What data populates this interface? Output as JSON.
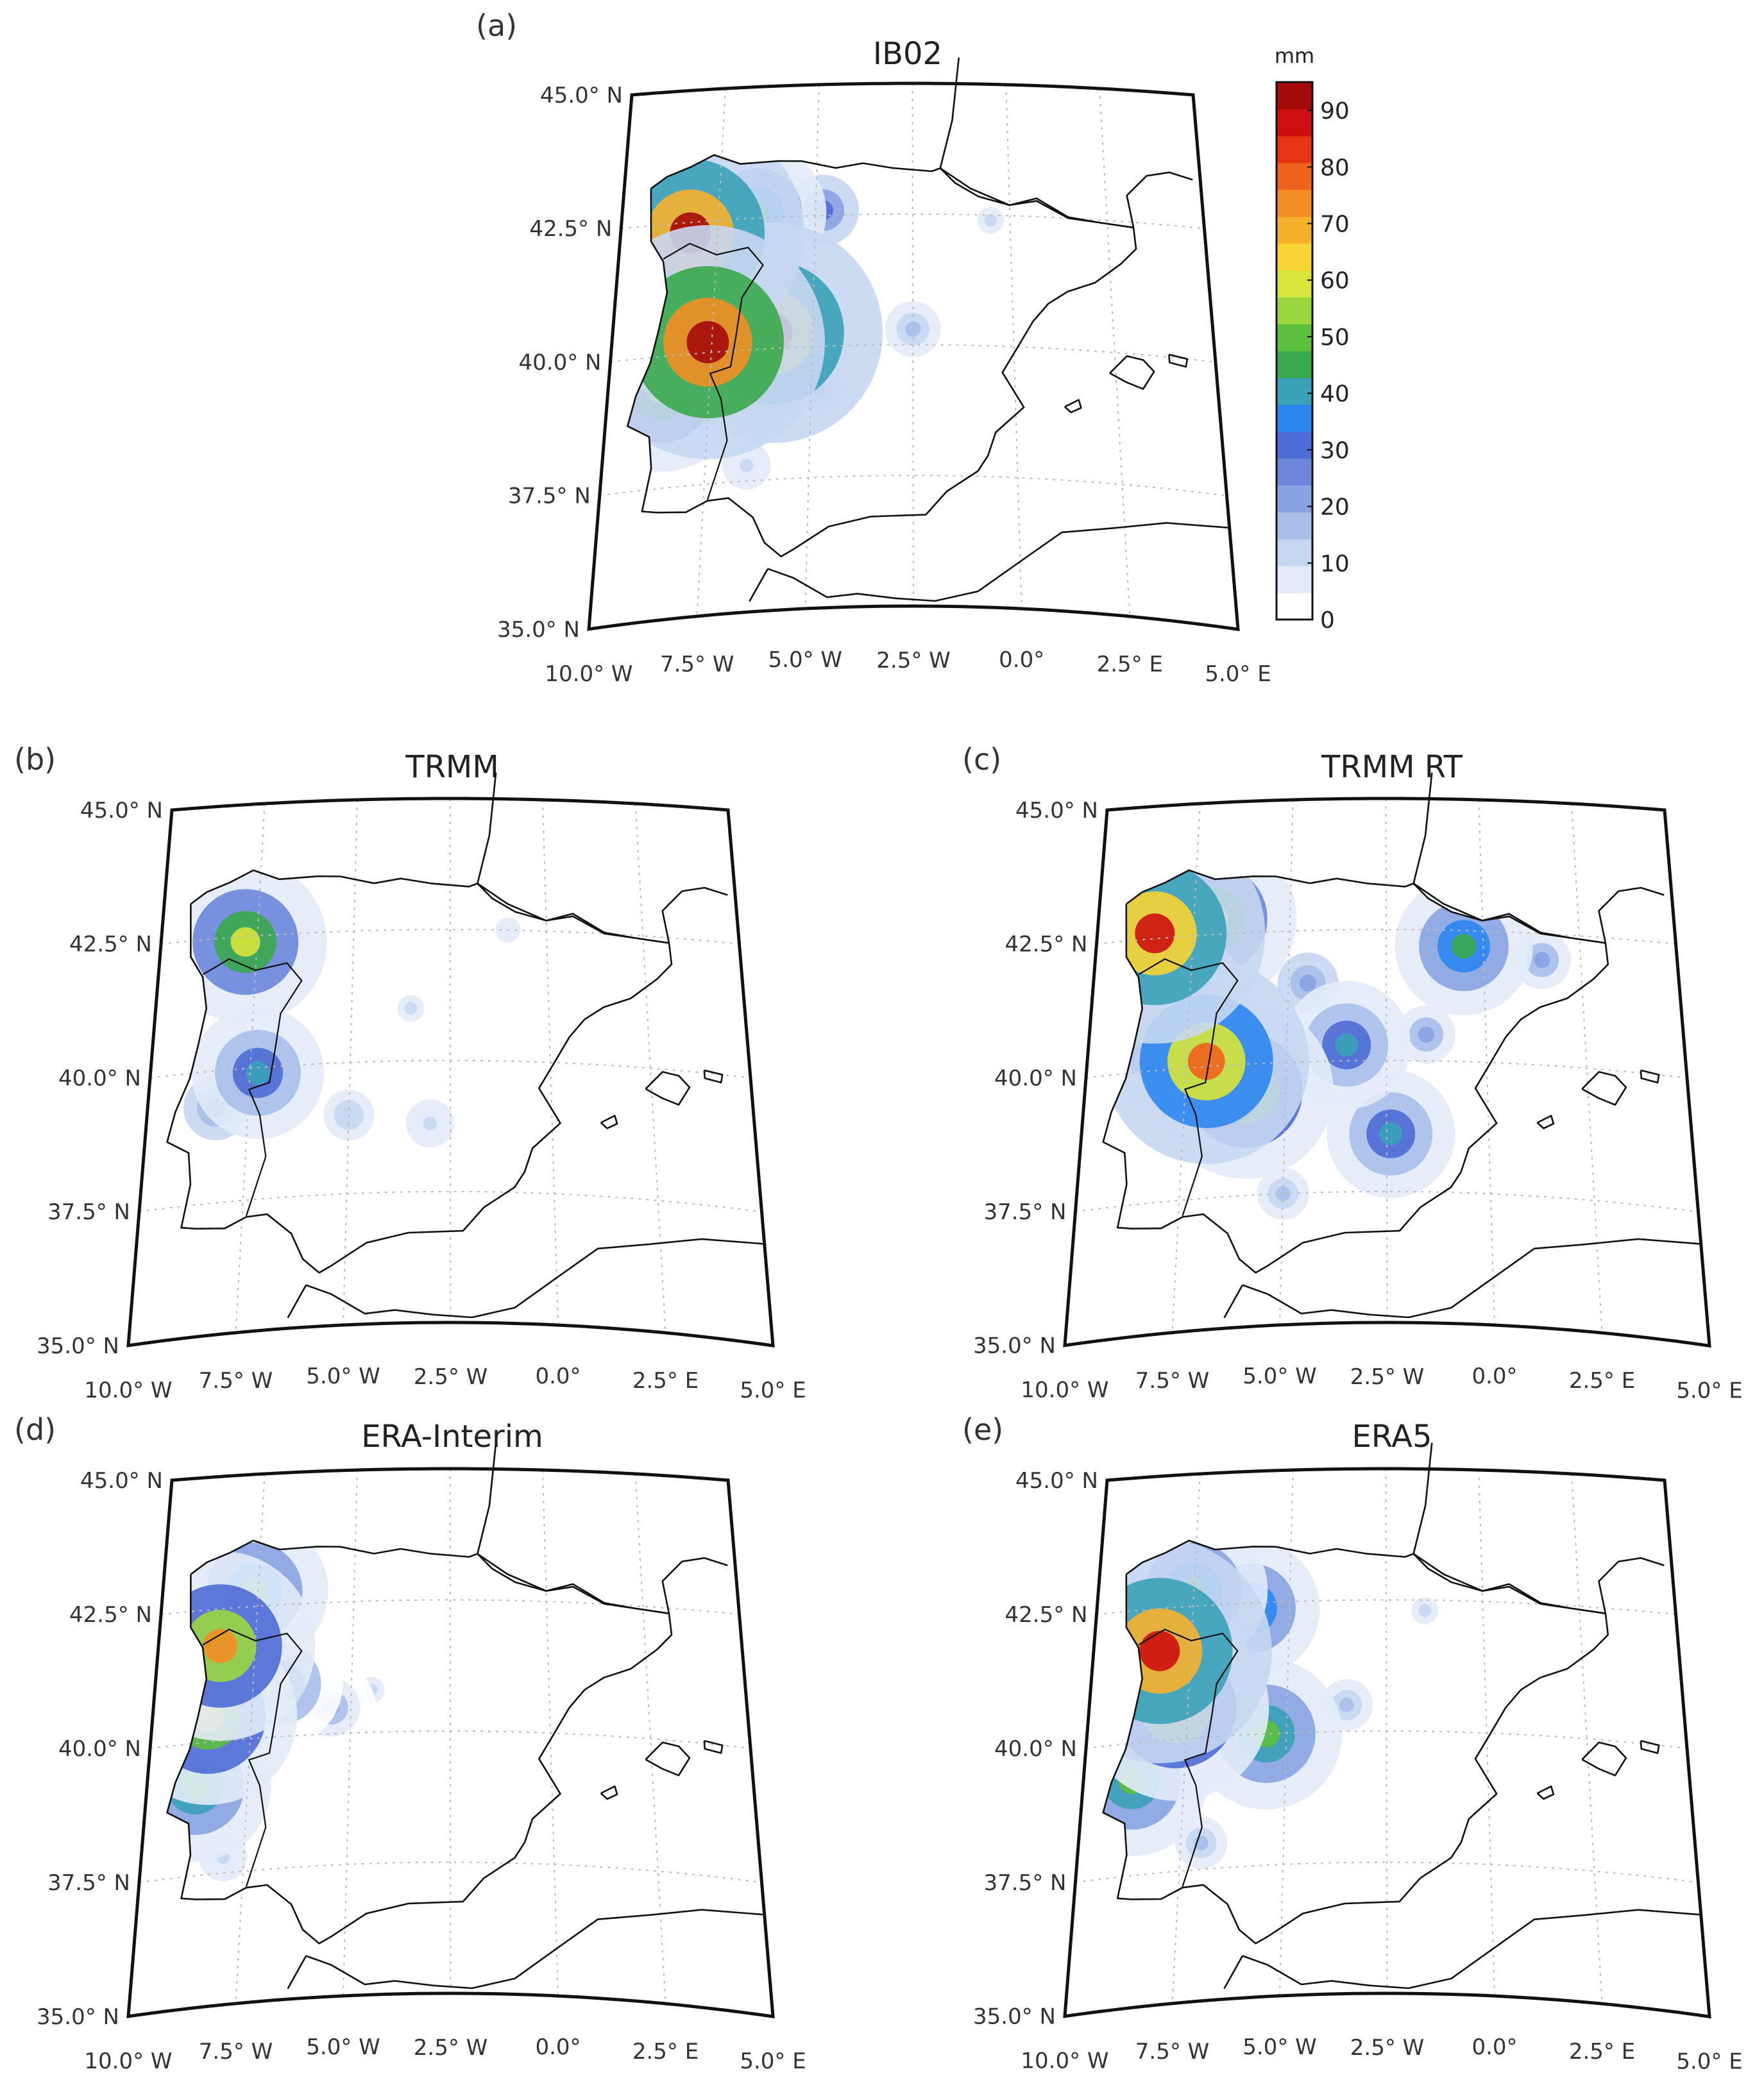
{
  "colorbar": {
    "unit": "mm",
    "min": 0,
    "max": 95,
    "ticks": [
      "0",
      "10",
      "20",
      "30",
      "40",
      "50",
      "60",
      "70",
      "80",
      "90"
    ],
    "colors": [
      "#ffffff",
      "#e3ebf8",
      "#c7d7f1",
      "#a9bfea",
      "#8aa3e2",
      "#6c86da",
      "#4e6cd5",
      "#2c86f0",
      "#3aa1b8",
      "#3aa84c",
      "#5cbf3e",
      "#9ad640",
      "#d7e63a",
      "#f7d433",
      "#f6b12c",
      "#f28e24",
      "#ef621c",
      "#e83316",
      "#cc1010",
      "#a50a0a"
    ]
  },
  "panels": [
    {
      "id": "a",
      "label": "(a)",
      "title": "IB02",
      "lat_labels": [
        "45.0° N",
        "42.5° N",
        "40.0° N",
        "37.5° N",
        "35.0° N"
      ],
      "lon_labels": [
        "10.0° W",
        "7.5° W",
        "5.0° W",
        "2.5° W",
        "0.0°",
        "2.5° E",
        "5.0° E"
      ],
      "field": [
        {
          "lon": -8.2,
          "lat": 42.3,
          "value": 92
        },
        {
          "lon": -7.6,
          "lat": 40.2,
          "value": 95
        },
        {
          "lon": -8.5,
          "lat": 41.0,
          "value": 70
        },
        {
          "lon": -8.7,
          "lat": 39.4,
          "value": 60
        },
        {
          "lon": -6.0,
          "lat": 40.3,
          "value": 88
        },
        {
          "lon": -6.5,
          "lat": 42.6,
          "value": 45
        },
        {
          "lon": -4.8,
          "lat": 42.6,
          "value": 30
        },
        {
          "lon": -2.5,
          "lat": 40.3,
          "value": 18
        },
        {
          "lon": -4.8,
          "lat": 39.2,
          "value": 15
        },
        {
          "lon": -0.5,
          "lat": 42.4,
          "value": 10
        },
        {
          "lon": -6.5,
          "lat": 37.8,
          "value": 12
        }
      ]
    },
    {
      "id": "b",
      "label": "(b)",
      "title": "TRMM",
      "lat_labels": [
        "45.0° N",
        "42.5° N",
        "40.0° N",
        "37.5° N",
        "35.0° N"
      ],
      "lon_labels": [
        "10.0° W",
        "7.5° W",
        "5.0° W",
        "2.5° W",
        "0.0°",
        "2.5° E",
        "5.0° E"
      ],
      "field": [
        {
          "lon": -7.8,
          "lat": 42.4,
          "value": 58
        },
        {
          "lon": -7.3,
          "lat": 39.9,
          "value": 42
        },
        {
          "lon": -8.3,
          "lat": 39.3,
          "value": 25
        },
        {
          "lon": -5.0,
          "lat": 39.0,
          "value": 14
        },
        {
          "lon": -3.5,
          "lat": 41.0,
          "value": 10
        },
        {
          "lon": -3.0,
          "lat": 38.8,
          "value": 12
        },
        {
          "lon": -1.0,
          "lat": 42.5,
          "value": 8
        }
      ]
    },
    {
      "id": "c",
      "label": "(c)",
      "title": "TRMM RT",
      "lat_labels": [
        "45.0° N",
        "42.5° N",
        "40.0° N",
        "37.5° N",
        "35.0° N"
      ],
      "lon_labels": [
        "10.0° W",
        "7.5° W",
        "5.0° W",
        "2.5° W",
        "0.0°",
        "2.5° E",
        "5.0° E"
      ],
      "field": [
        {
          "lon": -8.5,
          "lat": 42.6,
          "value": 88
        },
        {
          "lon": -7.0,
          "lat": 40.1,
          "value": 80
        },
        {
          "lon": -8.2,
          "lat": 41.0,
          "value": 70
        },
        {
          "lon": -6.0,
          "lat": 39.5,
          "value": 65
        },
        {
          "lon": -7.0,
          "lat": 42.8,
          "value": 60
        },
        {
          "lon": -0.5,
          "lat": 42.2,
          "value": 45
        },
        {
          "lon": -2.4,
          "lat": 38.6,
          "value": 40
        },
        {
          "lon": -3.5,
          "lat": 40.3,
          "value": 40
        },
        {
          "lon": -4.5,
          "lat": 41.5,
          "value": 22
        },
        {
          "lon": -1.5,
          "lat": 40.5,
          "value": 20
        },
        {
          "lon": 1.5,
          "lat": 42.0,
          "value": 20
        },
        {
          "lon": -5.0,
          "lat": 37.5,
          "value": 15
        }
      ]
    },
    {
      "id": "d",
      "label": "(d)",
      "title": "ERA-Interim",
      "lat_labels": [
        "45.0° N",
        "42.5° N",
        "40.0° N",
        "37.5° N",
        "35.0° N"
      ],
      "lon_labels": [
        "10.0° W",
        "7.5° W",
        "5.0° W",
        "2.5° W",
        "0.0°",
        "2.5° E",
        "5.0° E"
      ],
      "field": [
        {
          "lon": -8.4,
          "lat": 41.8,
          "value": 72
        },
        {
          "lon": -8.6,
          "lat": 40.5,
          "value": 66
        },
        {
          "lon": -8.8,
          "lat": 39.2,
          "value": 52
        },
        {
          "lon": -7.6,
          "lat": 42.8,
          "value": 50
        },
        {
          "lon": -6.8,
          "lat": 41.0,
          "value": 38
        },
        {
          "lon": -5.5,
          "lat": 40.5,
          "value": 20
        },
        {
          "lon": -4.5,
          "lat": 40.8,
          "value": 10
        },
        {
          "lon": -8.0,
          "lat": 37.8,
          "value": 12
        }
      ]
    },
    {
      "id": "e",
      "label": "(e)",
      "title": "ERA5",
      "lat_labels": [
        "45.0° N",
        "42.5° N",
        "40.0° N",
        "37.5° N",
        "35.0° N"
      ],
      "lon_labels": [
        "10.0° W",
        "7.5° W",
        "5.0° W",
        "2.5° W",
        "0.0°",
        "2.5° E",
        "5.0° E"
      ],
      "field": [
        {
          "lon": -8.3,
          "lat": 41.7,
          "value": 90
        },
        {
          "lon": -7.8,
          "lat": 40.6,
          "value": 70
        },
        {
          "lon": -8.8,
          "lat": 39.3,
          "value": 52
        },
        {
          "lon": -5.5,
          "lat": 40.0,
          "value": 52
        },
        {
          "lon": -6.0,
          "lat": 42.4,
          "value": 45
        },
        {
          "lon": -7.5,
          "lat": 42.8,
          "value": 50
        },
        {
          "lon": -3.5,
          "lat": 40.5,
          "value": 15
        },
        {
          "lon": -1.5,
          "lat": 42.3,
          "value": 10
        },
        {
          "lon": -7.0,
          "lat": 38.0,
          "value": 15
        }
      ]
    }
  ]
}
